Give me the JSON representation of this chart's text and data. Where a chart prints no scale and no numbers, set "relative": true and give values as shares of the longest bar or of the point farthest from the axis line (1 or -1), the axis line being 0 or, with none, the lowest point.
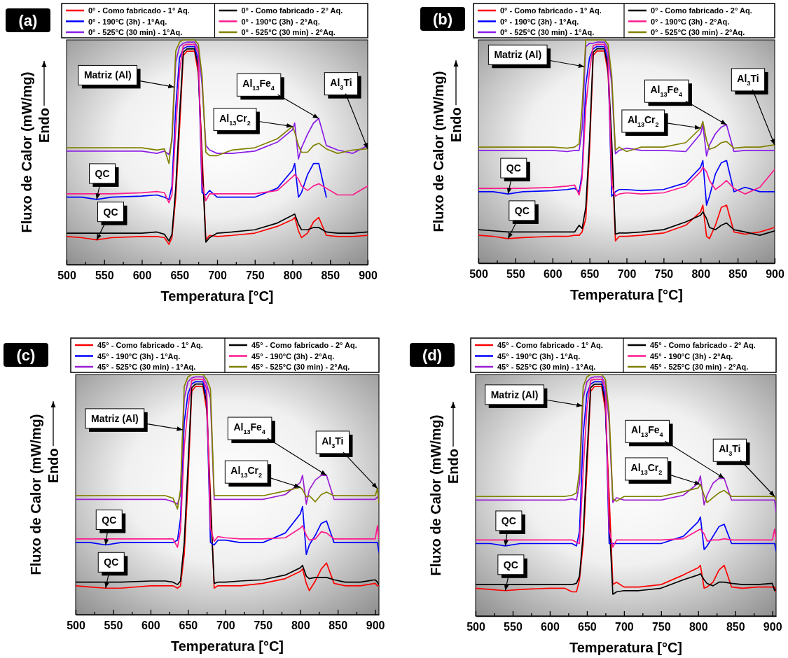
{
  "chart_data": [
    {
      "type": "line",
      "title": "(a)",
      "xlabel": "Temperatura [°C]",
      "ylabel": "Fluxo de Calor (mW/mg)",
      "relative": true,
      "legend": "top",
      "tick_labels": "x",
      "xlim": [
        500,
        900
      ],
      "xticks": [
        500,
        {
          "value": 525,
          "label": null
        },
        550,
        {
          "value": 575,
          "label": null
        },
        600,
        {
          "value": 625,
          "label": null
        },
        650,
        {
          "value": 675,
          "label": null
        },
        700,
        {
          "value": 725,
          "label": null
        },
        750,
        {
          "value": 775,
          "label": null
        },
        800,
        {
          "value": 825,
          "label": null
        },
        850,
        {
          "value": 875,
          "label": null
        },
        900
      ],
      "x": [
        500,
        520,
        540,
        560,
        600,
        620,
        630,
        636,
        640,
        645,
        650,
        655,
        660,
        670,
        675,
        680,
        685,
        690,
        700,
        720,
        750,
        780,
        800,
        803,
        808,
        812,
        820,
        828,
        835,
        845,
        860,
        880,
        900
      ],
      "series": [
        {
          "name": "0° - Como fabricado - 1° Aq.",
          "color": "#ff0000",
          "values": [
            0.125,
            0.12,
            0.11,
            0.12,
            0.125,
            0.125,
            0.12,
            0.09,
            0.12,
            0.3,
            0.6,
            0.93,
            0.95,
            0.95,
            0.85,
            0.5,
            0.11,
            0.13,
            0.125,
            0.13,
            0.14,
            0.17,
            0.2,
            0.21,
            0.15,
            0.12,
            0.14,
            0.19,
            0.21,
            0.13,
            0.125,
            0.125,
            0.13
          ]
        },
        {
          "name": "0° - Como fabricado - 2° Aq.",
          "color": "#000000",
          "values": [
            0.14,
            0.14,
            0.14,
            0.14,
            0.14,
            0.145,
            0.135,
            0.105,
            0.135,
            0.34,
            0.66,
            0.945,
            0.96,
            0.96,
            0.88,
            0.45,
            0.1,
            0.12,
            0.14,
            0.145,
            0.155,
            0.185,
            0.22,
            0.225,
            0.18,
            0.155,
            0.155,
            0.165,
            0.165,
            0.145,
            0.14,
            0.14,
            0.145
          ]
        },
        {
          "name": "0° - 190°C (3h) - 1°Aq.",
          "color": "#0000ff",
          "values": [
            0.3,
            0.3,
            0.29,
            0.3,
            0.305,
            0.31,
            0.3,
            0.29,
            0.35,
            0.7,
            0.92,
            0.96,
            0.97,
            0.97,
            0.91,
            0.32,
            0.31,
            0.33,
            0.3,
            0.3,
            0.3,
            0.34,
            0.42,
            0.45,
            0.3,
            0.32,
            0.4,
            0.45,
            0.45,
            0.3,
            null,
            null,
            null
          ]
        },
        {
          "name": "0° - 190°C (3h) - 2°Aq.",
          "color": "#ff1a8c",
          "values": [
            0.315,
            0.315,
            0.315,
            0.315,
            0.32,
            0.325,
            0.32,
            0.275,
            0.31,
            0.6,
            0.86,
            0.975,
            0.98,
            0.98,
            0.94,
            0.36,
            0.285,
            0.315,
            0.315,
            0.315,
            0.315,
            0.33,
            0.39,
            0.4,
            0.38,
            0.35,
            0.33,
            0.35,
            0.36,
            0.34,
            0.31,
            0.31,
            0.35
          ]
        },
        {
          "name": "0° - 525°C (30 min) - 1°Aq.",
          "color": "#8a1ee6",
          "values": [
            0.505,
            0.505,
            0.505,
            0.505,
            0.505,
            0.495,
            0.505,
            0.49,
            0.55,
            0.9,
            0.97,
            0.985,
            0.99,
            0.99,
            0.96,
            0.8,
            0.53,
            0.51,
            0.495,
            0.495,
            0.505,
            0.545,
            0.6,
            0.63,
            0.47,
            0.52,
            0.58,
            0.63,
            0.65,
            0.53,
            0.51,
            0.495,
            0.53
          ]
        },
        {
          "name": "0° - 525°C (30 min) - 2°Aq.",
          "color": "#808000",
          "values": [
            0.52,
            0.52,
            0.52,
            0.52,
            0.52,
            0.51,
            0.515,
            0.45,
            0.57,
            0.95,
            0.99,
            1,
            1,
            1,
            0.98,
            0.84,
            0.5,
            0.485,
            0.485,
            0.51,
            0.52,
            0.56,
            0.615,
            0.59,
            0.53,
            0.5,
            0.5,
            0.53,
            0.54,
            0.515,
            0.495,
            0.51,
            0.515
          ]
        }
      ],
      "annotations": [
        {
          "text": "Matriz (Al)",
          "x": 643,
          "y": 0.79
        },
        {
          "text": "Al$_{13}$Fe$_{4}$",
          "x": 835,
          "y": 0.65
        },
        {
          "text": "Al$_{13}$Cr$_{2}$",
          "x": 800,
          "y": 0.615
        },
        {
          "text": "Al$_{3}$Ti",
          "x": 900,
          "y": 0.515
        },
        {
          "text": "QC",
          "x": 540,
          "y": 0.29
        },
        {
          "text": "QC",
          "x": 540,
          "y": 0.11
        },
        "Endo"
      ]
    },
    {
      "type": "line",
      "title": "(b)",
      "xlabel": "Temperatura [°C]",
      "ylabel": "Fluxo de Calor (mW/mg)",
      "relative": true,
      "legend": "top",
      "tick_labels": "x",
      "xlim": [
        500,
        900
      ],
      "xticks": [
        500,
        {
          "value": 525,
          "label": null
        },
        550,
        {
          "value": 575,
          "label": null
        },
        600,
        {
          "value": 625,
          "label": null
        },
        650,
        {
          "value": 675,
          "label": null
        },
        700,
        {
          "value": 725,
          "label": null
        },
        750,
        {
          "value": 775,
          "label": null
        },
        800,
        {
          "value": 825,
          "label": null
        },
        850,
        {
          "value": 875,
          "label": null
        },
        900
      ],
      "x": [
        500,
        520,
        540,
        560,
        600,
        620,
        630,
        636,
        640,
        645,
        650,
        655,
        660,
        670,
        675,
        680,
        685,
        690,
        700,
        720,
        750,
        780,
        800,
        803,
        808,
        812,
        820,
        828,
        835,
        845,
        860,
        880,
        900
      ],
      "series": [
        {
          "name": "0° - Como fabricado - 1° Aq.",
          "color": "#ff0000",
          "values": [
            0.125,
            0.12,
            0.11,
            0.115,
            0.12,
            0.12,
            0.125,
            0.125,
            0.14,
            0.2,
            0.5,
            0.93,
            0.95,
            0.95,
            0.85,
            0.5,
            0.1,
            0.12,
            0.12,
            0.125,
            0.135,
            0.17,
            0.23,
            0.26,
            0.12,
            0.11,
            0.17,
            0.25,
            0.26,
            0.14,
            0.13,
            0.14,
            0.16
          ]
        },
        {
          "name": "0° - Como fabricado - 2° Aq.",
          "color": "#000000",
          "values": [
            0.15,
            0.145,
            0.14,
            0.14,
            0.14,
            0.14,
            0.14,
            0.17,
            0.155,
            0.25,
            0.55,
            0.945,
            0.96,
            0.96,
            0.88,
            0.55,
            0.13,
            0.135,
            0.135,
            0.14,
            0.15,
            0.185,
            0.215,
            0.23,
            0.2,
            0.16,
            0.15,
            0.17,
            0.18,
            0.15,
            0.14,
            0.125,
            0.145
          ]
        },
        {
          "name": "0° - 190°C (3h) - 1°Aq.",
          "color": "#0000ff",
          "values": [
            0.32,
            0.32,
            0.31,
            0.32,
            0.325,
            0.33,
            0.335,
            0.32,
            0.4,
            0.8,
            0.92,
            0.96,
            0.97,
            0.97,
            0.91,
            0.3,
            0.32,
            0.33,
            0.33,
            0.325,
            0.33,
            0.36,
            0.43,
            0.46,
            0.26,
            0.3,
            0.4,
            0.45,
            0.46,
            0.32,
            0.34,
            0.32,
            0.32
          ]
        },
        {
          "name": "0° - 190°C (3h) - 2°Aq.",
          "color": "#ff1a8c",
          "values": [
            0.335,
            0.335,
            0.335,
            0.335,
            0.34,
            0.345,
            0.35,
            0.305,
            0.38,
            0.7,
            0.86,
            0.975,
            0.98,
            0.98,
            0.94,
            0.35,
            0.3,
            0.31,
            0.315,
            0.31,
            0.315,
            0.345,
            0.41,
            0.43,
            0.41,
            0.37,
            0.33,
            0.35,
            0.37,
            0.335,
            0.31,
            0.34,
            0.42
          ]
        },
        {
          "name": "0° - 525°C (30 min) - 1°Aq.",
          "color": "#8a1ee6",
          "values": [
            0.505,
            0.505,
            0.505,
            0.505,
            0.505,
            0.5,
            0.505,
            0.505,
            0.6,
            0.97,
            0.985,
            0.985,
            0.99,
            0.99,
            0.96,
            0.8,
            0.49,
            0.505,
            0.515,
            0.505,
            0.505,
            0.5,
            0.58,
            0.62,
            0.48,
            0.53,
            0.58,
            0.61,
            0.62,
            0.5,
            0.505,
            0.505,
            0.505
          ]
        },
        {
          "name": "0° - 525°C (30 min) - 2°Aq.",
          "color": "#808000",
          "values": [
            0.52,
            0.52,
            0.52,
            0.52,
            0.52,
            0.515,
            0.52,
            0.535,
            0.7,
            1,
            1,
            1,
            1,
            1,
            0.98,
            0.84,
            0.505,
            0.52,
            0.5,
            0.52,
            0.52,
            0.54,
            0.605,
            0.635,
            0.55,
            0.51,
            0.52,
            0.54,
            0.545,
            0.515,
            0.52,
            0.52,
            0.53
          ]
        }
      ],
      "annotations": [
        {
          "text": "Matriz (Al)",
          "x": 643,
          "y": 0.88
        },
        {
          "text": "Al$_{13}$Fe$_{4}$",
          "x": 835,
          "y": 0.62
        },
        {
          "text": "Al$_{13}$Cr$_{2}$",
          "x": 800,
          "y": 0.605
        },
        {
          "text": "Al$_{3}$Ti",
          "x": 900,
          "y": 0.53
        },
        {
          "text": "QC",
          "x": 540,
          "y": 0.31
        },
        {
          "text": "QC",
          "x": 540,
          "y": 0.11
        },
        "Endo"
      ]
    },
    {
      "type": "line",
      "title": "(c)",
      "xlabel": "Temperatura [°C]",
      "ylabel": "Fluxo de Calor (mW/mg)",
      "relative": true,
      "legend": "top",
      "tick_labels": "x",
      "xlim": [
        500,
        905
      ],
      "xticks": [
        500,
        {
          "value": 525,
          "label": null
        },
        550,
        {
          "value": 575,
          "label": null
        },
        600,
        {
          "value": 625,
          "label": null
        },
        650,
        {
          "value": 675,
          "label": null
        },
        700,
        {
          "value": 725,
          "label": null
        },
        750,
        {
          "value": 775,
          "label": null
        },
        800,
        {
          "value": 825,
          "label": null
        },
        850,
        {
          "value": 875,
          "label": null
        },
        900
      ],
      "x": [
        500,
        520,
        540,
        560,
        600,
        620,
        630,
        636,
        640,
        645,
        650,
        655,
        660,
        670,
        675,
        680,
        685,
        690,
        700,
        720,
        750,
        780,
        800,
        803,
        808,
        812,
        820,
        828,
        835,
        845,
        860,
        880,
        900,
        903,
        905
      ],
      "series": [
        {
          "name": "45° - Como fabricado - 1° Aq.",
          "color": "#ff0000",
          "values": [
            0.12,
            0.115,
            0.11,
            0.11,
            0.12,
            0.12,
            0.12,
            0.11,
            0.12,
            0.25,
            0.55,
            0.93,
            0.95,
            0.95,
            0.85,
            0.5,
            0.11,
            0.12,
            0.12,
            0.12,
            0.13,
            0.15,
            0.18,
            0.19,
            0.13,
            0.1,
            0.14,
            0.19,
            0.215,
            0.13,
            0.12,
            0.12,
            0.13,
            0.12,
            0.12
          ]
        },
        {
          "name": "45° - Como fabricado - 2° Aq.",
          "color": "#000000",
          "values": [
            0.135,
            0.135,
            0.135,
            0.135,
            0.14,
            0.14,
            0.135,
            0.125,
            0.14,
            0.3,
            0.62,
            0.945,
            0.96,
            0.96,
            0.88,
            0.45,
            0.13,
            0.135,
            0.135,
            0.14,
            0.145,
            0.165,
            0.195,
            0.205,
            0.16,
            0.15,
            0.155,
            0.155,
            0.155,
            0.145,
            0.135,
            0.135,
            0.145,
            0.135,
            0.125
          ]
        },
        {
          "name": "45° - 190°C (3h) - 1°Aq.",
          "color": "#0000ff",
          "values": [
            0.3,
            0.3,
            0.29,
            0.3,
            0.3,
            0.3,
            0.3,
            0.31,
            0.4,
            0.8,
            0.92,
            0.96,
            0.97,
            0.97,
            0.91,
            0.3,
            0.29,
            0.31,
            0.31,
            0.3,
            0.3,
            0.34,
            0.42,
            0.45,
            0.25,
            0.29,
            0.33,
            0.38,
            0.39,
            0.3,
            0.3,
            0.3,
            0.3,
            0.3,
            0.26
          ]
        },
        {
          "name": "45° - 190°C (3h) - 2°Aq.",
          "color": "#ff1a8c",
          "values": [
            0.315,
            0.315,
            0.315,
            0.315,
            0.315,
            0.315,
            0.315,
            0.28,
            0.35,
            0.7,
            0.86,
            0.975,
            0.98,
            0.98,
            0.94,
            0.36,
            0.305,
            0.325,
            0.32,
            0.315,
            0.315,
            0.32,
            0.36,
            0.37,
            0.33,
            0.31,
            0.315,
            0.345,
            0.34,
            0.315,
            0.315,
            0.315,
            0.315,
            0.37,
            0.315
          ]
        },
        {
          "name": "45° - 525°C (30 min) - 1°Aq.",
          "color": "#9b1ed2",
          "values": [
            0.48,
            0.48,
            0.48,
            0.48,
            0.48,
            0.48,
            0.47,
            0.46,
            0.5,
            0.9,
            0.97,
            0.985,
            0.99,
            0.99,
            0.96,
            0.9,
            0.48,
            0.48,
            0.48,
            0.48,
            0.48,
            0.5,
            0.55,
            0.58,
            0.46,
            0.52,
            0.56,
            0.58,
            0.58,
            0.48,
            0.48,
            0.48,
            0.48,
            0.49,
            0.48
          ]
        },
        {
          "name": "45° - 525°C (30 min) - 2°Aq.",
          "color": "#808000",
          "values": [
            0.495,
            0.495,
            0.495,
            0.495,
            0.495,
            0.495,
            0.485,
            0.44,
            0.52,
            0.95,
            0.99,
            1,
            1,
            1,
            0.98,
            0.94,
            0.495,
            0.495,
            0.495,
            0.495,
            0.495,
            0.515,
            0.53,
            0.52,
            0.49,
            0.495,
            0.47,
            0.5,
            0.51,
            0.495,
            0.495,
            0.495,
            0.495,
            0.525,
            0.465
          ]
        }
      ],
      "annotations": [
        {
          "text": "Matriz (Al)",
          "x": 643,
          "y": 0.77
        },
        {
          "text": "Al$_{13}$Fe$_{4}$",
          "x": 835,
          "y": 0.58
        },
        {
          "text": "Al$_{13}$Cr$_{2}$",
          "x": 800,
          "y": 0.53
        },
        {
          "text": "Al$_{3}$Ti",
          "x": 903,
          "y": 0.525
        },
        {
          "text": "QC",
          "x": 540,
          "y": 0.29
        },
        {
          "text": "QC",
          "x": 540,
          "y": 0.11
        },
        "Endo"
      ]
    },
    {
      "type": "line",
      "title": "(d)",
      "xlabel": "Temperatura [°C]",
      "ylabel": "Fluxo de Calor (mW/mg)",
      "relative": true,
      "legend": "top",
      "tick_labels": "x",
      "xlim": [
        500,
        905
      ],
      "xticks": [
        500,
        {
          "value": 525,
          "label": null
        },
        550,
        {
          "value": 575,
          "label": null
        },
        600,
        {
          "value": 625,
          "label": null
        },
        650,
        {
          "value": 675,
          "label": null
        },
        700,
        {
          "value": 725,
          "label": null
        },
        750,
        {
          "value": 775,
          "label": null
        },
        800,
        {
          "value": 825,
          "label": null
        },
        850,
        {
          "value": 875,
          "label": null
        },
        900
      ],
      "x": [
        500,
        520,
        540,
        560,
        600,
        620,
        630,
        636,
        640,
        645,
        650,
        655,
        660,
        670,
        675,
        680,
        685,
        690,
        700,
        720,
        750,
        780,
        800,
        803,
        808,
        812,
        820,
        828,
        835,
        845,
        860,
        880,
        900,
        903,
        905
      ],
      "series": [
        {
          "name": "45° - Como fabricado - 1° Aq.",
          "color": "#ff0000",
          "values": [
            0.115,
            0.11,
            0.105,
            0.11,
            0.115,
            0.115,
            0.1,
            0.1,
            0.15,
            0.3,
            0.6,
            0.93,
            0.95,
            0.95,
            0.85,
            0.5,
            0.13,
            0.14,
            0.12,
            0.12,
            0.13,
            0.17,
            0.2,
            0.21,
            0.115,
            0.12,
            0.14,
            0.19,
            0.21,
            0.12,
            0.115,
            0.12,
            0.12,
            0.12,
            0.1
          ]
        },
        {
          "name": "45° - Como fabricado - 2° Aq.",
          "color": "#000000",
          "values": [
            0.13,
            0.13,
            0.13,
            0.13,
            0.13,
            0.13,
            0.13,
            0.135,
            0.165,
            0.34,
            0.66,
            0.945,
            0.96,
            0.96,
            0.88,
            0.4,
            0.09,
            0.1,
            0.105,
            0.105,
            0.115,
            0.15,
            0.17,
            0.175,
            0.15,
            0.135,
            0.125,
            0.14,
            0.14,
            0.135,
            0.13,
            0.13,
            0.135,
            0.105,
            0.11
          ]
        },
        {
          "name": "45° - 190°C (3h) - 1°Aq.",
          "color": "#0000ff",
          "values": [
            0.3,
            0.3,
            0.29,
            0.3,
            0.3,
            0.3,
            0.3,
            0.29,
            0.35,
            0.75,
            0.92,
            0.96,
            0.97,
            0.97,
            0.91,
            0.3,
            0.3,
            0.3,
            0.3,
            0.3,
            0.3,
            0.33,
            0.39,
            0.41,
            0.275,
            0.29,
            0.33,
            0.37,
            0.38,
            0.3,
            0.3,
            0.3,
            0.3,
            0.3,
            0.27
          ]
        },
        {
          "name": "45° - 190°C (3h) - 2°Aq.",
          "color": "#ff1a8c",
          "values": [
            0.315,
            0.315,
            0.315,
            0.315,
            0.315,
            0.315,
            0.315,
            0.305,
            0.3,
            0.6,
            0.86,
            0.975,
            0.98,
            0.98,
            0.94,
            0.36,
            0.285,
            0.315,
            0.315,
            0.315,
            0.315,
            0.32,
            0.355,
            0.36,
            0.34,
            0.31,
            0.315,
            0.315,
            0.32,
            0.315,
            0.315,
            0.315,
            0.315,
            0.36,
            0.315
          ]
        },
        {
          "name": "45° - 525°C (30 min) - 1°Aq.",
          "color": "#9b1ed2",
          "values": [
            0.48,
            0.48,
            0.48,
            0.48,
            0.48,
            0.48,
            0.485,
            0.48,
            0.55,
            0.9,
            0.97,
            0.985,
            0.99,
            0.99,
            0.96,
            0.8,
            0.47,
            0.49,
            0.48,
            0.48,
            0.48,
            0.5,
            0.55,
            0.58,
            0.46,
            0.5,
            0.55,
            0.57,
            0.57,
            0.48,
            0.48,
            0.48,
            0.48,
            0.48,
            0.43
          ]
        },
        {
          "name": "45° - 525°C (30 min) - 2°Aq.",
          "color": "#808000",
          "values": [
            0.495,
            0.495,
            0.495,
            0.495,
            0.495,
            0.495,
            0.5,
            0.51,
            0.6,
            0.95,
            0.99,
            1,
            1,
            1,
            0.98,
            0.84,
            0.485,
            0.475,
            0.495,
            0.495,
            0.495,
            0.515,
            0.53,
            0.545,
            0.5,
            0.47,
            0.49,
            0.51,
            0.52,
            0.495,
            0.495,
            0.495,
            0.495,
            0.495,
            0.48
          ]
        }
      ],
      "annotations": [
        {
          "text": "Matriz (Al)",
          "x": 644,
          "y": 0.87
        },
        {
          "text": "Al$_{13}$Fe$_{4}$",
          "x": 835,
          "y": 0.57
        },
        {
          "text": "Al$_{13}$Cr$_{2}$",
          "x": 803,
          "y": 0.545
        },
        {
          "text": "Al$_{3}$Ti",
          "x": 903,
          "y": 0.495
        },
        {
          "text": "QC",
          "x": 540,
          "y": 0.29
        },
        {
          "text": "QC",
          "x": 540,
          "y": 0.105
        },
        "Endo"
      ]
    }
  ]
}
